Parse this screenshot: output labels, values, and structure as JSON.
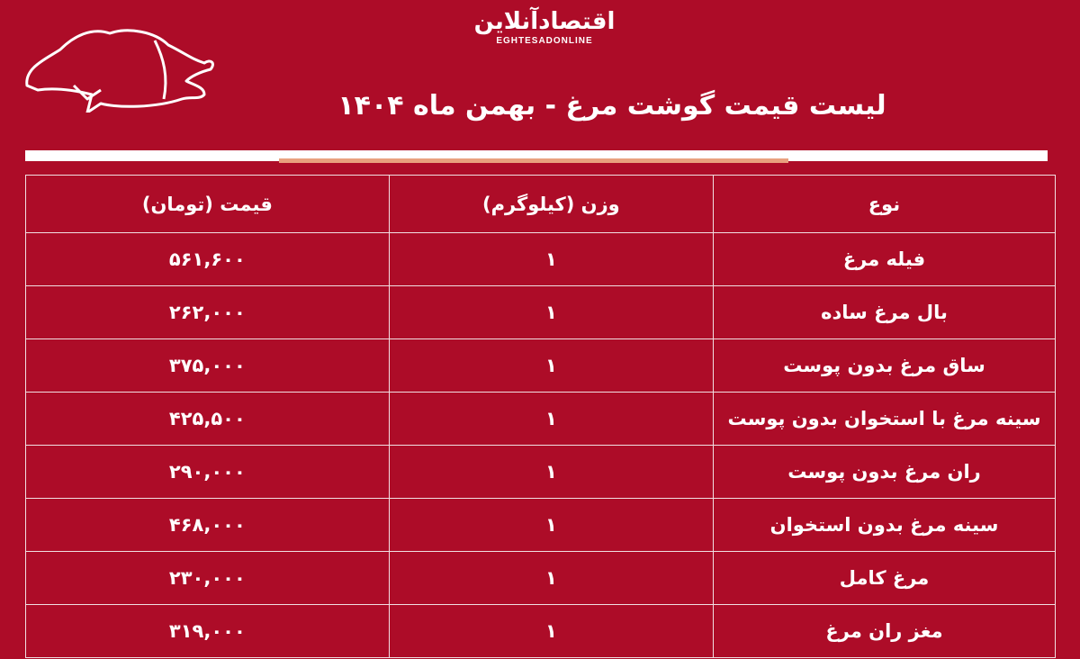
{
  "brand": {
    "logo_fa": "اقتصادآنلاین",
    "logo_en": "EGHTESADONLINE"
  },
  "title": "لیست قیمت گوشت مرغ - بهمن ماه ۱۴۰۴",
  "colors": {
    "background": "#ad0c28",
    "accent": "#e9a07e",
    "text": "#ffffff"
  },
  "decor": {
    "icon": "chicken-outline-icon"
  },
  "table": {
    "headers": [
      "نوع",
      "وزن (کیلوگرم)",
      "قیمت (تومان)"
    ],
    "rows": [
      {
        "type": "فیله مرغ",
        "weight": "۱",
        "price": "۵۶۱,۶۰۰"
      },
      {
        "type": "بال مرغ ساده",
        "weight": "۱",
        "price": "۲۶۲,۰۰۰"
      },
      {
        "type": "ساق مرغ بدون پوست",
        "weight": "۱",
        "price": "۳۷۵,۰۰۰"
      },
      {
        "type": "سینه مرغ با استخوان بدون پوست",
        "weight": "۱",
        "price": "۴۲۵,۵۰۰"
      },
      {
        "type": "ران مرغ بدون پوست",
        "weight": "۱",
        "price": "۲۹۰,۰۰۰"
      },
      {
        "type": "سینه مرغ بدون استخوان",
        "weight": "۱",
        "price": "۴۶۸,۰۰۰"
      },
      {
        "type": "مرغ کامل",
        "weight": "۱",
        "price": "۲۳۰,۰۰۰"
      },
      {
        "type": "مغز ران مرغ",
        "weight": "۱",
        "price": "۳۱۹,۰۰۰"
      }
    ]
  }
}
